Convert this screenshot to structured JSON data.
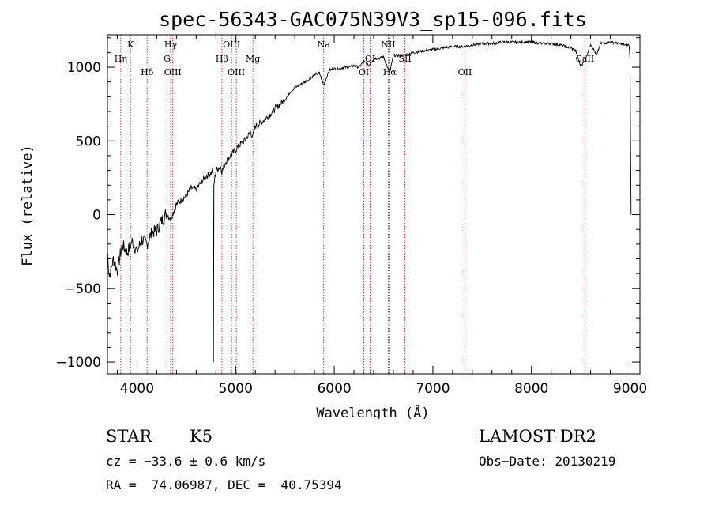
{
  "chart_data": {
    "type": "line",
    "title": "spec-56343-GAC075N39V3_sp15-096.fits",
    "xlabel": "Wavelength (Å)",
    "ylabel": "Flux (relative)",
    "xlim": [
      3700,
      9100
    ],
    "ylim": [
      -1080,
      1220
    ],
    "xticks": [
      4000,
      5000,
      6000,
      7000,
      8000,
      9000
    ],
    "yticks": [
      -1000,
      -500,
      0,
      500,
      1000
    ],
    "grid": false,
    "series": [
      {
        "name": "flux",
        "x": [
          3700,
          3720,
          3760,
          3800,
          3850,
          3900,
          3950,
          4000,
          4050,
          4100,
          4150,
          4200,
          4250,
          4300,
          4340,
          4400,
          4450,
          4500,
          4550,
          4600,
          4650,
          4700,
          4750,
          4770,
          4775,
          4780,
          4800,
          4850,
          4861,
          4900,
          4950,
          5000,
          5050,
          5100,
          5150,
          5175,
          5200,
          5250,
          5300,
          5350,
          5400,
          5450,
          5500,
          5550,
          5600,
          5650,
          5700,
          5750,
          5800,
          5850,
          5893,
          5950,
          6000,
          6050,
          6100,
          6150,
          6200,
          6250,
          6300,
          6350,
          6400,
          6450,
          6500,
          6563,
          6600,
          6650,
          6700,
          6800,
          6900,
          7000,
          7100,
          7200,
          7300,
          7400,
          7500,
          7600,
          7700,
          7800,
          7900,
          8000,
          8100,
          8200,
          8300,
          8400,
          8450,
          8498,
          8542,
          8600,
          8662,
          8700,
          8800,
          8900,
          8950,
          8990,
          9000,
          9010
        ],
        "y": [
          -250,
          -420,
          -300,
          -380,
          -200,
          -260,
          -180,
          -250,
          -170,
          -200,
          -120,
          -110,
          -40,
          10,
          -30,
          70,
          100,
          130,
          180,
          170,
          220,
          260,
          280,
          300,
          -1000,
          200,
          300,
          330,
          290,
          360,
          400,
          440,
          480,
          510,
          560,
          530,
          600,
          620,
          650,
          680,
          720,
          750,
          780,
          830,
          860,
          880,
          900,
          920,
          950,
          960,
          880,
          980,
          990,
          990,
          1000,
          1000,
          1010,
          1000,
          1040,
          1010,
          1060,
          1060,
          1070,
          960,
          1080,
          1080,
          1080,
          1100,
          1110,
          1120,
          1130,
          1140,
          1140,
          1150,
          1160,
          1160,
          1170,
          1170,
          1170,
          1170,
          1160,
          1160,
          1150,
          1130,
          1110,
          1010,
          1040,
          1160,
          1080,
          1160,
          1170,
          1160,
          1150,
          1150,
          1050,
          0
        ]
      }
    ],
    "line_markers": [
      {
        "label": "Hη",
        "wavelength": 3835,
        "tier": 2
      },
      {
        "label": "K",
        "wavelength": 3934,
        "tier": 1
      },
      {
        "label": "Hδ",
        "wavelength": 4102,
        "tier": 3
      },
      {
        "label": "Hγ",
        "wavelength": 4341,
        "tier": 1
      },
      {
        "label": "G",
        "wavelength": 4304,
        "tier": 2
      },
      {
        "label": "OIII",
        "wavelength": 4363,
        "tier": 3
      },
      {
        "label": "Hβ",
        "wavelength": 4861,
        "tier": 2
      },
      {
        "label": "OIII",
        "wavelength": 4959,
        "tier": 1
      },
      {
        "label": "OIII",
        "wavelength": 5007,
        "tier": 3
      },
      {
        "label": "Mg",
        "wavelength": 5175,
        "tier": 2
      },
      {
        "label": "Na",
        "wavelength": 5893,
        "tier": 1
      },
      {
        "label": "OI",
        "wavelength": 6300,
        "tier": 3
      },
      {
        "label": "OI",
        "wavelength": 6364,
        "tier": 2
      },
      {
        "label": "NII",
        "wavelength": 6548,
        "tier": 1
      },
      {
        "label": "Hα",
        "wavelength": 6563,
        "tier": 3
      },
      {
        "label": "SII",
        "wavelength": 6717,
        "tier": 2
      },
      {
        "label": "OII",
        "wavelength": 7325,
        "tier": 3
      },
      {
        "label": "CaII",
        "wavelength": 8542,
        "tier": 2
      }
    ]
  },
  "info": {
    "object_class": "STAR",
    "subclass": "K5",
    "survey": "LAMOST DR2",
    "cz": "cz = −33.6 ± 0.6 km/s",
    "obs_date": "Obs−Date: 20130219",
    "coords": "RA =  74.06987, DEC =  40.75394"
  },
  "colors": {
    "spectrum": "#000000",
    "marker": "#b22222",
    "axis": "#000000"
  }
}
